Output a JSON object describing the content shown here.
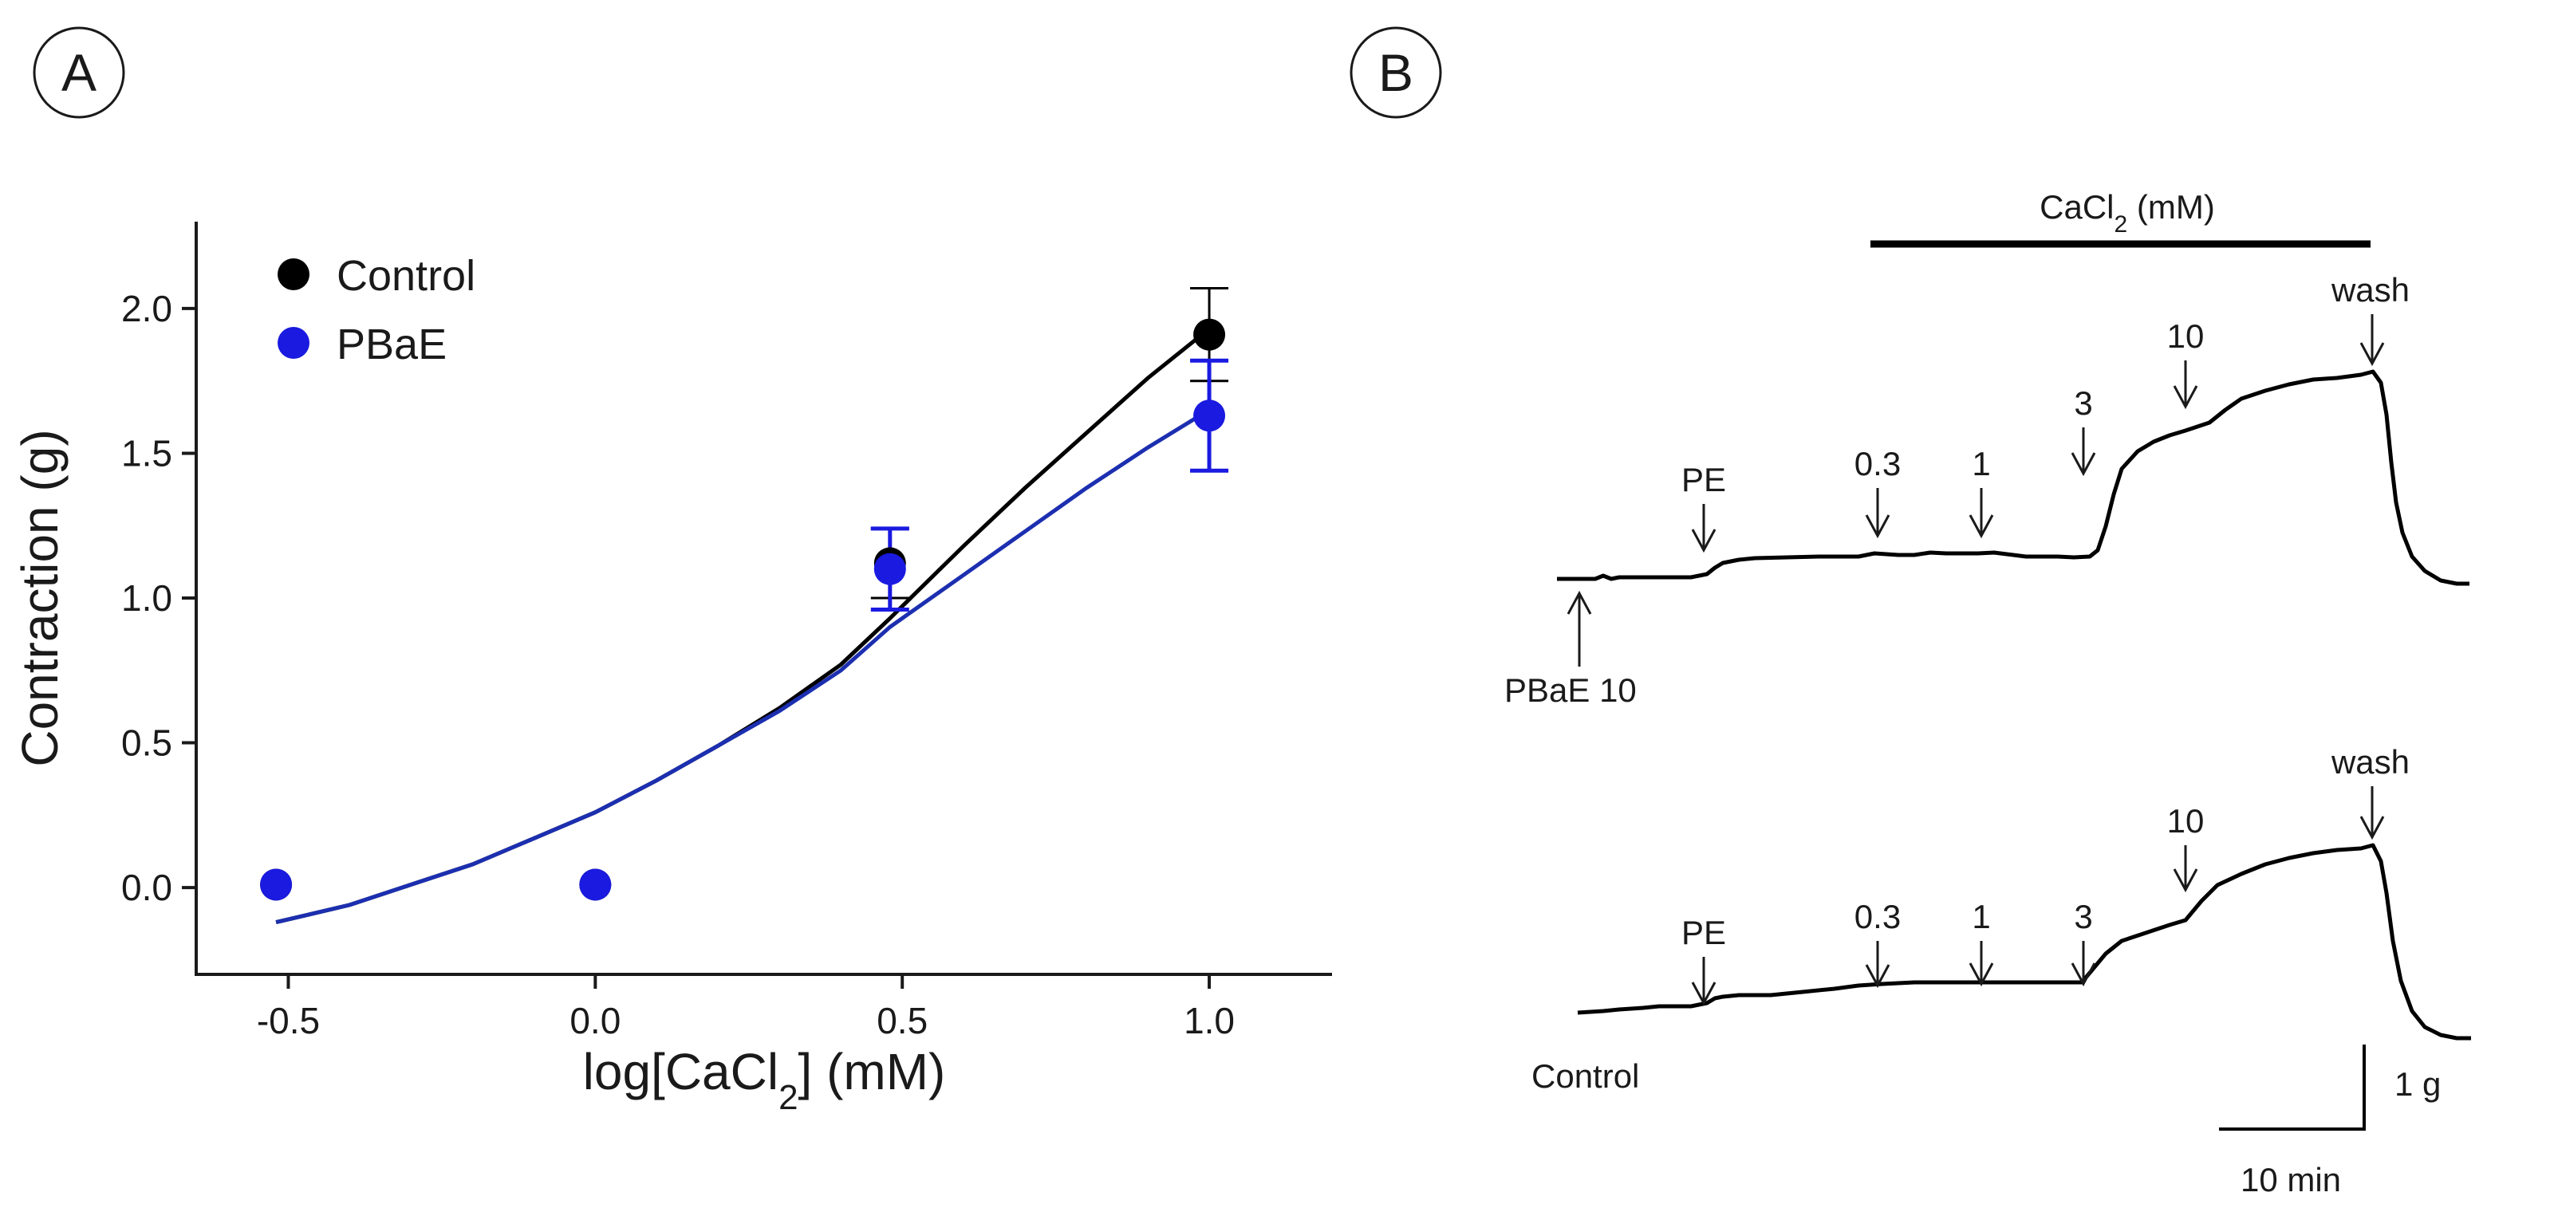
{
  "panel_a_label": "A",
  "panel_b_label": "B",
  "colors": {
    "control": "#000000",
    "pbae": "#1a1ae0",
    "pbae_line": "#1c2fb0",
    "axis": "#1a1a1a"
  },
  "chart_data": [
    {
      "type": "scatter",
      "panel": "A",
      "title": "",
      "xlabel_prefix": "log[CaCl",
      "xlabel_sub": "2",
      "xlabel_suffix": "] (mM)",
      "ylabel": "Contraction (g)",
      "xlim": [
        -0.65,
        1.2
      ],
      "ylim": [
        -0.3,
        2.3
      ],
      "xticks": [
        -0.5,
        0.0,
        0.5,
        1.0
      ],
      "xtick_labels": [
        "-0.5",
        "0.0",
        "0.5",
        "1.0"
      ],
      "yticks": [
        0.0,
        0.5,
        1.0,
        1.5,
        2.0
      ],
      "ytick_labels": [
        "0.0",
        "0.5",
        "1.0",
        "1.5",
        "2.0"
      ],
      "legend_position": "top-left",
      "series": [
        {
          "name": "Control",
          "color": "#000000",
          "x": [
            -0.52,
            0.0,
            0.48,
            1.0
          ],
          "y": [
            0.01,
            0.01,
            1.12,
            1.91
          ],
          "err": [
            0.0,
            0.0,
            0.12,
            0.16
          ],
          "fit_x": [
            -0.52,
            -0.4,
            -0.3,
            -0.2,
            -0.1,
            0.0,
            0.1,
            0.2,
            0.3,
            0.4,
            0.48,
            0.6,
            0.7,
            0.8,
            0.9,
            1.0
          ],
          "fit_y": [
            -0.12,
            -0.06,
            0.01,
            0.08,
            0.17,
            0.26,
            0.37,
            0.49,
            0.62,
            0.77,
            0.93,
            1.18,
            1.38,
            1.57,
            1.76,
            1.93
          ]
        },
        {
          "name": "PBaE",
          "color": "#1a1ae0",
          "x": [
            -0.52,
            0.0,
            0.48,
            1.0
          ],
          "y": [
            0.01,
            0.01,
            1.1,
            1.63
          ],
          "err": [
            0.0,
            0.0,
            0.14,
            0.19
          ],
          "fit_x": [
            -0.52,
            -0.4,
            -0.3,
            -0.2,
            -0.1,
            0.0,
            0.1,
            0.2,
            0.3,
            0.4,
            0.48,
            0.6,
            0.7,
            0.8,
            0.9,
            1.0
          ],
          "fit_y": [
            -0.12,
            -0.06,
            0.01,
            0.08,
            0.17,
            0.26,
            0.37,
            0.49,
            0.61,
            0.75,
            0.9,
            1.08,
            1.23,
            1.38,
            1.52,
            1.65
          ]
        }
      ]
    },
    {
      "type": "line",
      "panel": "B",
      "title_prefix": "CaCl",
      "title_sub": "2",
      "title_suffix": " (mM)",
      "traces": [
        {
          "name": "PBaE 10",
          "start_label": "PBaE 10",
          "events": [
            {
              "label": "PE"
            },
            {
              "label": "0.3"
            },
            {
              "label": "1"
            },
            {
              "label": "3"
            },
            {
              "label": "10"
            },
            {
              "label": "wash"
            }
          ]
        },
        {
          "name": "Control",
          "start_label": "Control",
          "events": [
            {
              "label": "PE"
            },
            {
              "label": "0.3"
            },
            {
              "label": "1"
            },
            {
              "label": "3"
            },
            {
              "label": "10"
            },
            {
              "label": "wash"
            }
          ]
        }
      ],
      "scale_bar_force": "1 g",
      "scale_bar_time": "10 min"
    }
  ]
}
